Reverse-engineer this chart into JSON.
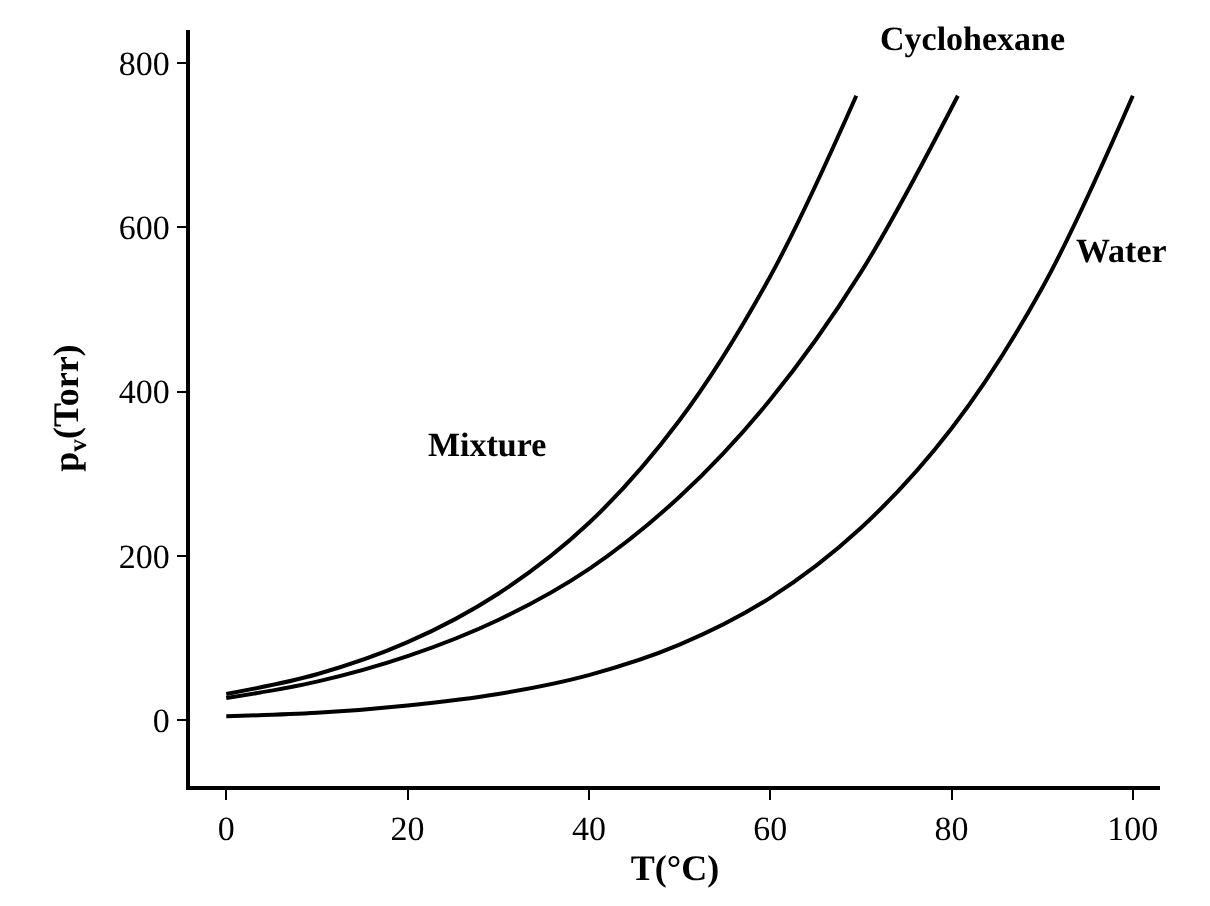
{
  "chart_data": {
    "type": "line",
    "xlabel": "T(°C)",
    "ylabel": "p$_{v}$(Torr)",
    "xlim": [
      -4,
      103
    ],
    "ylim": [
      -80,
      840
    ],
    "xticks": [
      0,
      20,
      40,
      60,
      80,
      100
    ],
    "yticks": [
      0,
      200,
      400,
      600,
      800
    ],
    "marker": "none",
    "line_style": "solid",
    "series": [
      {
        "name": "Mixture",
        "color": "#000000",
        "x": [
          0,
          10,
          20,
          30,
          40,
          50,
          60,
          69.5
        ],
        "values": [
          32,
          56,
          95,
          154,
          240,
          365,
          540,
          760
        ]
      },
      {
        "name": "Cyclohexane",
        "color": "#000000",
        "x": [
          0,
          10,
          20,
          30,
          40,
          50,
          60,
          70,
          80.7
        ],
        "values": [
          27,
          47,
          78,
          122,
          184,
          272,
          390,
          545,
          760
        ]
      },
      {
        "name": "Water",
        "color": "#000000",
        "x": [
          0,
          10,
          20,
          30,
          40,
          50,
          60,
          70,
          80,
          90,
          100
        ],
        "values": [
          5,
          9,
          18,
          32,
          55,
          92,
          149,
          234,
          355,
          526,
          760
        ]
      }
    ]
  }
}
